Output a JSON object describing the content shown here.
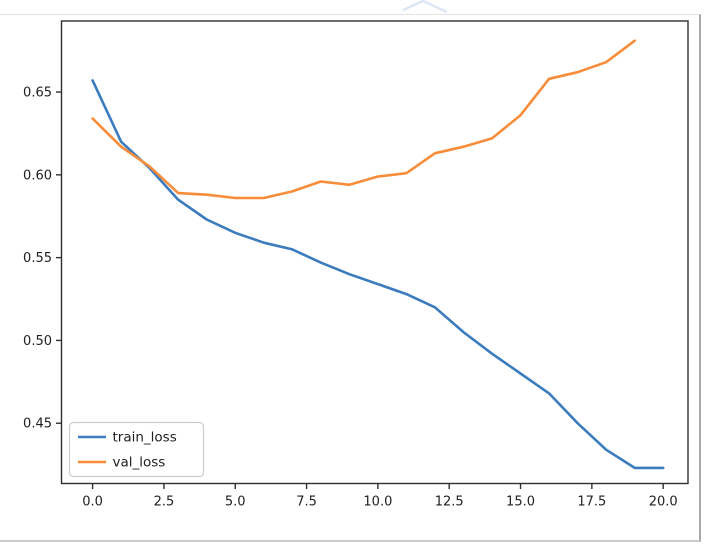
{
  "figure": {
    "title": "",
    "background": "#ffffff",
    "card_border_right_color": "#a9a9a9",
    "card_border_bottom_color": "#cbcbcb"
  },
  "chart_data": {
    "type": "line",
    "title": "",
    "xlabel": "",
    "ylabel": "",
    "grid": false,
    "xlim": [
      -1.09,
      20.87
    ],
    "ylim": [
      0.4136,
      0.6929
    ],
    "xtick_values": [
      0,
      2.5,
      5,
      7.5,
      10,
      12.5,
      15,
      17.5,
      20
    ],
    "xtick_labels": [
      "0.0",
      "2.5",
      "5.0",
      "7.5",
      "10.0",
      "12.5",
      "15.0",
      "17.5",
      "20.0"
    ],
    "ytick_values": [
      0.45,
      0.5,
      0.55,
      0.6,
      0.65
    ],
    "ytick_labels": [
      "0.45",
      "0.50",
      "0.55",
      "0.60",
      "0.65"
    ],
    "spine_color": "#2f2f2f",
    "series": [
      {
        "name": "train_loss",
        "color": "#3b7cbe",
        "x": [
          0,
          1,
          2,
          3,
          4,
          5,
          6,
          7,
          8,
          9,
          10,
          11,
          12,
          13,
          14,
          15,
          16,
          17,
          18,
          19,
          20
        ],
        "values": [
          0.657,
          0.62,
          0.604,
          0.585,
          0.573,
          0.565,
          0.559,
          0.555,
          0.547,
          0.54,
          0.534,
          0.528,
          0.52,
          0.505,
          0.492,
          0.48,
          0.468,
          0.45,
          0.434,
          0.423,
          0.423
        ]
      },
      {
        "name": "val_loss",
        "color": "#f78d3a",
        "x": [
          0,
          1,
          2,
          3,
          4,
          5,
          6,
          7,
          8,
          9,
          10,
          11,
          12,
          13,
          14,
          15,
          16,
          17,
          18,
          19
        ],
        "values": [
          0.634,
          0.617,
          0.605,
          0.589,
          0.588,
          0.586,
          0.586,
          0.59,
          0.596,
          0.594,
          0.599,
          0.601,
          0.613,
          0.617,
          0.622,
          0.636,
          0.658,
          0.662,
          0.668,
          0.681
        ]
      }
    ],
    "legend": {
      "position": "lower left",
      "entries": [
        "train_loss",
        "val_loss"
      ]
    }
  }
}
